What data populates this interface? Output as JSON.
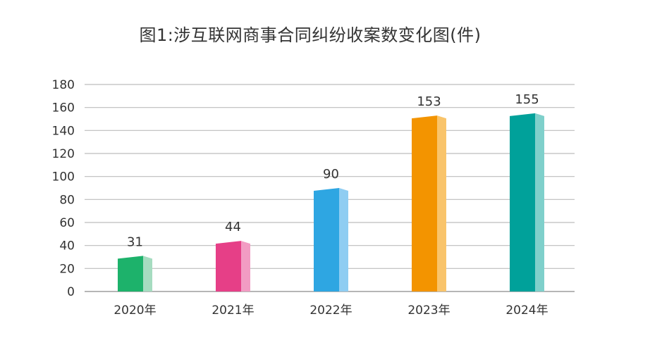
{
  "chart_data": {
    "type": "bar",
    "title": "图1:涉互联网商事合同纠纷收案数变化图(件)",
    "categories": [
      "2020年",
      "2021年",
      "2022年",
      "2023年",
      "2024年"
    ],
    "values": [
      31,
      44,
      90,
      153,
      155
    ],
    "value_labels": [
      "31",
      "44",
      "90",
      "153",
      "155"
    ],
    "y_ticks": [
      "0",
      "20",
      "40",
      "60",
      "80",
      "100",
      "120",
      "140",
      "160",
      "180"
    ],
    "ylim": [
      0,
      180
    ],
    "grid": true,
    "xlabel": "",
    "ylabel": "",
    "colors": [
      {
        "front": "#1db26b",
        "side": "#a6dcc0"
      },
      {
        "front": "#e63f87",
        "side": "#f29cc3"
      },
      {
        "front": "#2ea6e2",
        "side": "#8fcdf2"
      },
      {
        "front": "#f39400",
        "side": "#f9c46b"
      },
      {
        "front": "#00a19a",
        "side": "#7fd0cb"
      }
    ],
    "grid_color": "#bdbdbd",
    "axis_color": "#9e9e9e"
  }
}
